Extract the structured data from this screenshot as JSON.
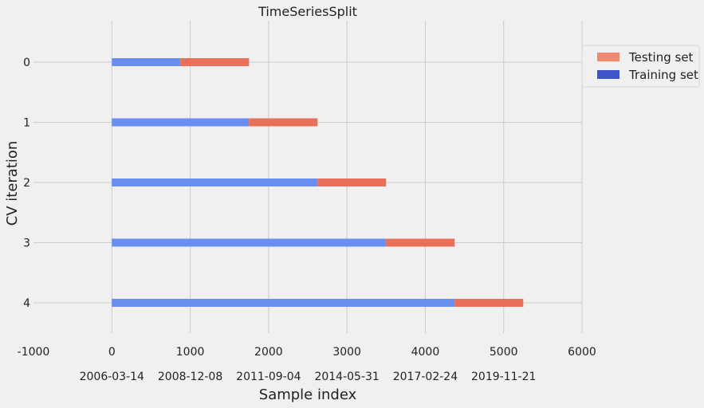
{
  "chart_data": {
    "type": "bar",
    "orientation": "horizontal",
    "stacked": true,
    "title": "TimeSeriesSplit",
    "xlabel": "Sample index",
    "ylabel": "CV iteration",
    "xlim": [
      -1000,
      6000
    ],
    "x_ticks": [
      -1000,
      0,
      1000,
      2000,
      3000,
      4000,
      5000,
      6000
    ],
    "date_tick_labels": [
      {
        "x": 0,
        "label": "2006-03-14"
      },
      {
        "x": 1000,
        "label": "2008-12-08"
      },
      {
        "x": 2000,
        "label": "2011-09-04"
      },
      {
        "x": 3000,
        "label": "2014-05-31"
      },
      {
        "x": 4000,
        "label": "2017-02-24"
      },
      {
        "x": 5000,
        "label": "2019-11-21"
      }
    ],
    "categories": [
      "0",
      "1",
      "2",
      "3",
      "4"
    ],
    "series": [
      {
        "name": "Training set",
        "color": "#6a8ef0",
        "values": [
          875,
          1750,
          2625,
          3500,
          4375
        ]
      },
      {
        "name": "Testing set",
        "color": "#e8705a",
        "values": [
          875,
          875,
          875,
          875,
          875
        ]
      }
    ],
    "grid": true,
    "legend_position": "right, outside plot",
    "legend": [
      {
        "label": "Testing set",
        "color": "#ef8a6f"
      },
      {
        "label": "Training set",
        "color": "#3d55c8"
      }
    ]
  }
}
